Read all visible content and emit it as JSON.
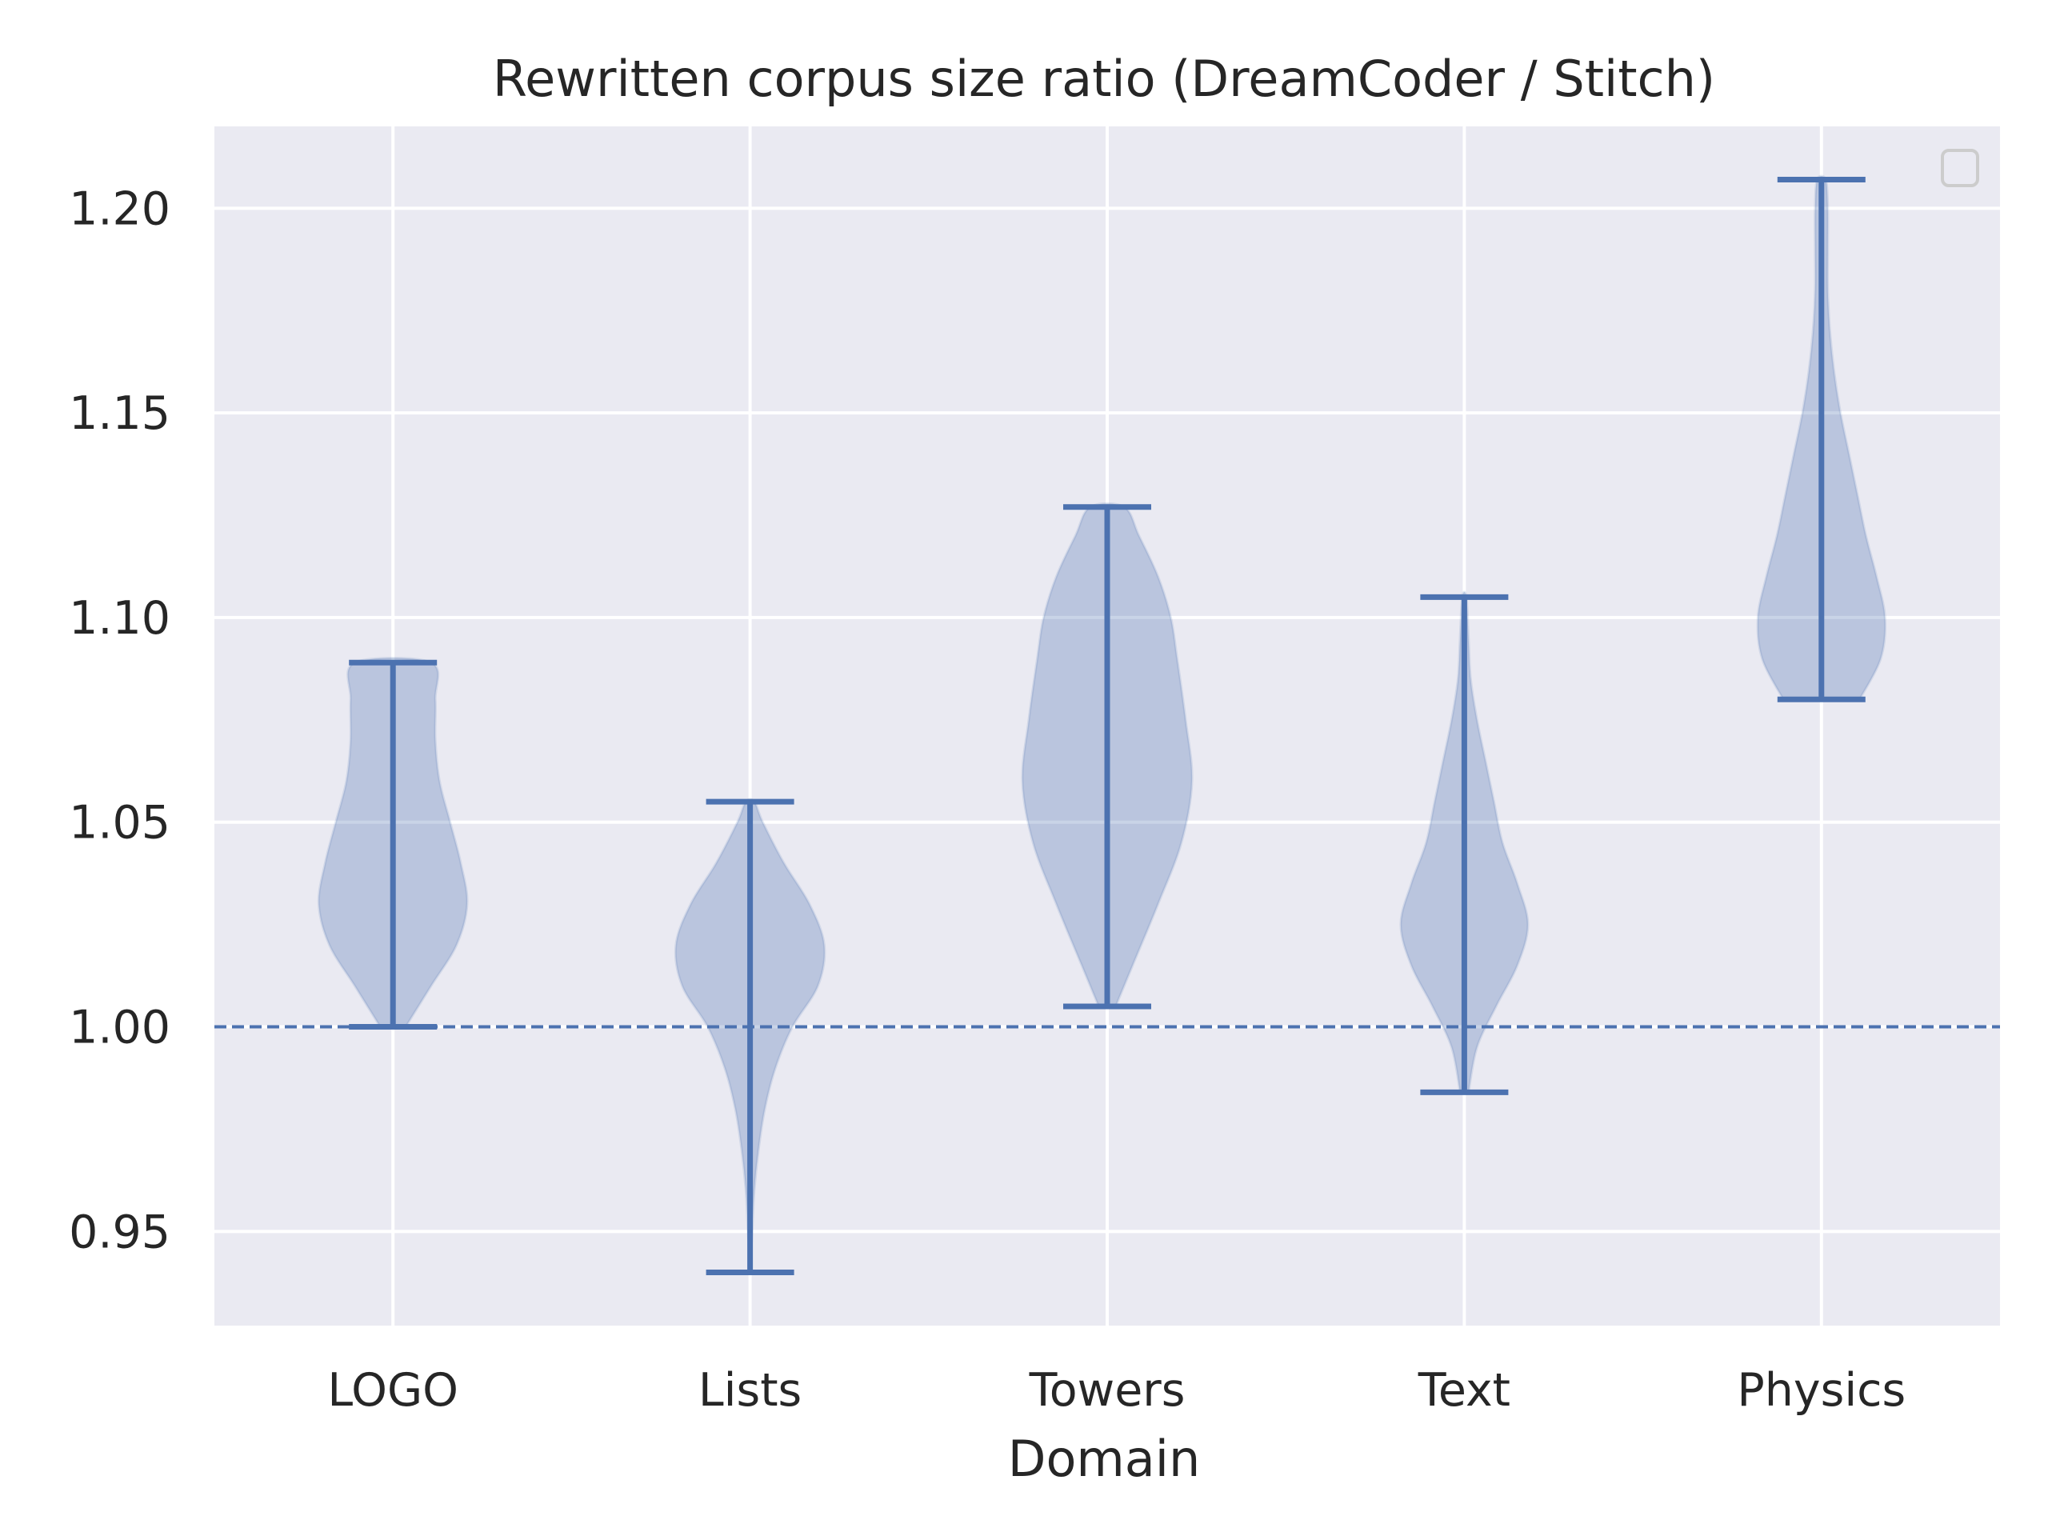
{
  "chart_data": {
    "type": "violin",
    "title": "Rewritten corpus size ratio (DreamCoder / Stitch)",
    "xlabel": "Domain",
    "ylabel": "",
    "categories": [
      "LOGO",
      "Lists",
      "Towers",
      "Text",
      "Physics"
    ],
    "ylim": [
      0.927,
      1.22
    ],
    "yticks": [
      0.95,
      1.0,
      1.05,
      1.1,
      1.15,
      1.2
    ],
    "ytick_labels": [
      "0.95",
      "1.00",
      "1.05",
      "1.10",
      "1.15",
      "1.20"
    ],
    "reference_line": {
      "y": 1.0,
      "style": "dashed"
    },
    "grid": true,
    "legend": {
      "placement": "top-right",
      "entries": []
    },
    "series": [
      {
        "category": "LOGO",
        "min": 1.0,
        "max": 1.089,
        "density": [
          [
            1.0,
            0.06
          ],
          [
            1.01,
            0.18
          ],
          [
            1.02,
            0.3
          ],
          [
            1.03,
            0.35
          ],
          [
            1.04,
            0.32
          ],
          [
            1.05,
            0.27
          ],
          [
            1.06,
            0.22
          ],
          [
            1.07,
            0.2
          ],
          [
            1.08,
            0.2
          ],
          [
            1.089,
            0.18
          ]
        ]
      },
      {
        "category": "Lists",
        "min": 0.94,
        "max": 1.055,
        "density": [
          [
            0.94,
            0.0
          ],
          [
            0.95,
            0.01
          ],
          [
            0.96,
            0.02
          ],
          [
            0.97,
            0.04
          ],
          [
            0.98,
            0.07
          ],
          [
            0.99,
            0.12
          ],
          [
            1.0,
            0.2
          ],
          [
            1.01,
            0.32
          ],
          [
            1.02,
            0.35
          ],
          [
            1.03,
            0.28
          ],
          [
            1.04,
            0.16
          ],
          [
            1.05,
            0.06
          ],
          [
            1.055,
            0.02
          ]
        ]
      },
      {
        "category": "Towers",
        "min": 1.005,
        "max": 1.127,
        "density": [
          [
            1.005,
            0.04
          ],
          [
            1.015,
            0.12
          ],
          [
            1.03,
            0.24
          ],
          [
            1.045,
            0.35
          ],
          [
            1.06,
            0.4
          ],
          [
            1.075,
            0.37
          ],
          [
            1.09,
            0.33
          ],
          [
            1.1,
            0.3
          ],
          [
            1.11,
            0.24
          ],
          [
            1.12,
            0.15
          ],
          [
            1.127,
            0.08
          ]
        ]
      },
      {
        "category": "Text",
        "min": 0.984,
        "max": 1.105,
        "density": [
          [
            0.984,
            0.02
          ],
          [
            0.995,
            0.06
          ],
          [
            1.005,
            0.15
          ],
          [
            1.015,
            0.25
          ],
          [
            1.025,
            0.3
          ],
          [
            1.035,
            0.25
          ],
          [
            1.045,
            0.18
          ],
          [
            1.055,
            0.14
          ],
          [
            1.065,
            0.1
          ],
          [
            1.075,
            0.06
          ],
          [
            1.085,
            0.03
          ],
          [
            1.095,
            0.02
          ],
          [
            1.105,
            0.01
          ]
        ]
      },
      {
        "category": "Physics",
        "min": 1.08,
        "max": 1.207,
        "density": [
          [
            1.08,
            0.18
          ],
          [
            1.09,
            0.28
          ],
          [
            1.1,
            0.3
          ],
          [
            1.11,
            0.26
          ],
          [
            1.12,
            0.21
          ],
          [
            1.13,
            0.17
          ],
          [
            1.14,
            0.13
          ],
          [
            1.15,
            0.09
          ],
          [
            1.16,
            0.06
          ],
          [
            1.17,
            0.04
          ],
          [
            1.18,
            0.03
          ],
          [
            1.19,
            0.03
          ],
          [
            1.2,
            0.03
          ],
          [
            1.207,
            0.02
          ]
        ]
      }
    ],
    "colors": {
      "background": "#eaeaf2",
      "grid": "#ffffff",
      "body": "#4c72b0",
      "body_opacity": 0.3,
      "line": "#4c72b0",
      "text": "#262626"
    }
  }
}
